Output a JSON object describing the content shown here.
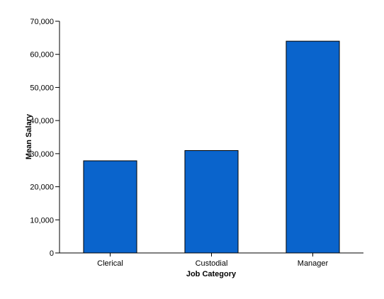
{
  "chart_data": {
    "type": "bar",
    "categories": [
      "Clerical",
      "Custodial",
      "Manager"
    ],
    "values": [
      27838,
      30939,
      63978
    ],
    "xlabel": "Job Category",
    "ylabel": "Mean Salary",
    "ylim": [
      0,
      70000
    ],
    "yticks": [
      "0",
      "10,000",
      "20,000",
      "30,000",
      "40,000",
      "50,000",
      "60,000",
      "70,000"
    ],
    "grid": false,
    "bar_color": "#0A64CC",
    "bar_edge_color": "#000000"
  }
}
